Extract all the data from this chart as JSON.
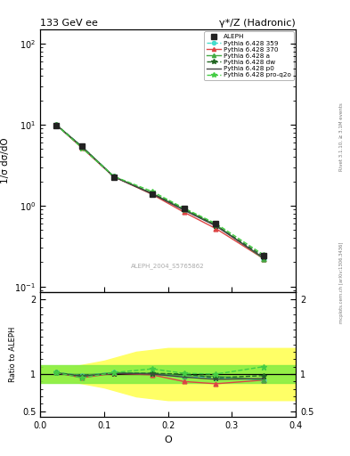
{
  "title_left": "133 GeV ee",
  "title_right": "γ*/Z (Hadronic)",
  "xlabel": "O",
  "ylabel_main": "1/σ dσ/dO",
  "ylabel_ratio": "Ratio to ALEPH",
  "watermark": "ALEPH_2004_S5765862",
  "right_label": "Rivet 3.1.10, ≥ 3.1M events",
  "mcplots_label": "mcplots.cern.ch [arXiv:1306.3436]",
  "aleph_x": [
    0.025,
    0.065,
    0.115,
    0.175,
    0.225,
    0.275,
    0.35
  ],
  "aleph_y": [
    9.8,
    5.5,
    2.25,
    1.4,
    0.92,
    0.6,
    0.24
  ],
  "aleph_yerr": [
    0.4,
    0.25,
    0.12,
    0.08,
    0.06,
    0.04,
    0.015
  ],
  "pythia_x": [
    0.025,
    0.065,
    0.115,
    0.175,
    0.225,
    0.275,
    0.35
  ],
  "p359_y": [
    10.0,
    5.4,
    2.3,
    1.4,
    0.88,
    0.57,
    0.22
  ],
  "p370_y": [
    10.0,
    5.2,
    2.28,
    1.38,
    0.83,
    0.52,
    0.22
  ],
  "pa_y": [
    10.0,
    5.4,
    2.3,
    1.42,
    0.9,
    0.58,
    0.22
  ],
  "pdw_y": [
    10.0,
    5.35,
    2.28,
    1.42,
    0.92,
    0.57,
    0.235
  ],
  "pp0_y": [
    9.9,
    5.35,
    2.28,
    1.4,
    0.88,
    0.56,
    0.225
  ],
  "pproq2o_y": [
    10.0,
    5.2,
    2.3,
    1.5,
    0.93,
    0.6,
    0.245
  ],
  "ratio_359": [
    1.02,
    0.98,
    1.02,
    1.0,
    0.96,
    0.95,
    0.92
  ],
  "ratio_370": [
    1.02,
    0.95,
    1.01,
    0.99,
    0.9,
    0.87,
    0.92
  ],
  "ratio_a": [
    1.02,
    0.98,
    1.02,
    1.01,
    0.98,
    0.97,
    0.92
  ],
  "ratio_dw": [
    1.02,
    0.97,
    1.01,
    1.01,
    1.0,
    0.95,
    0.98
  ],
  "ratio_p0": [
    1.01,
    0.97,
    1.01,
    1.0,
    0.96,
    0.93,
    0.94
  ],
  "ratio_proq2o": [
    1.02,
    0.95,
    1.02,
    1.07,
    1.01,
    1.0,
    1.1
  ],
  "band_x": [
    0.0,
    0.05,
    0.1,
    0.15,
    0.2,
    0.25,
    0.3,
    0.35,
    0.4
  ],
  "band_green_lo": [
    0.88,
    0.88,
    0.88,
    0.88,
    0.88,
    0.88,
    0.88,
    0.88,
    0.88
  ],
  "band_green_hi": [
    1.12,
    1.12,
    1.12,
    1.12,
    1.12,
    1.12,
    1.12,
    1.12,
    1.12
  ],
  "band_yellow_lo": [
    0.9,
    0.9,
    0.82,
    0.7,
    0.65,
    0.65,
    0.65,
    0.65,
    0.65
  ],
  "band_yellow_hi": [
    1.1,
    1.1,
    1.18,
    1.3,
    1.35,
    1.35,
    1.35,
    1.35,
    1.35
  ],
  "color_aleph": "#222222",
  "color_359": "#44ddcc",
  "color_370": "#dd4444",
  "color_a": "#44aa44",
  "color_dw": "#226622",
  "color_p0": "#444444",
  "color_proq2o": "#44cc44",
  "ylim_main": [
    0.085,
    150
  ],
  "ylim_ratio": [
    0.42,
    2.1
  ],
  "xlim": [
    0.0,
    0.4
  ]
}
